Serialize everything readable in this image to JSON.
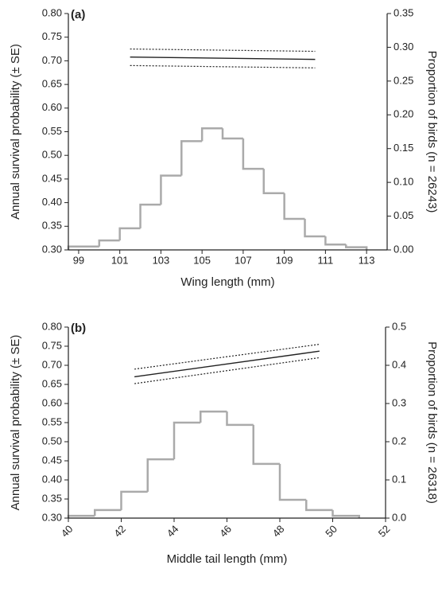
{
  "chart_data": [
    {
      "type": "line",
      "panel_label": "(a)",
      "xlabel": "Wing length (mm)",
      "ylabel": "Annual survival probability (± SE)",
      "y2label": "Proportion of birds (n = 26243)",
      "xlim": [
        98.5,
        114
      ],
      "xticks": [
        99,
        101,
        103,
        105,
        107,
        109,
        111,
        113
      ],
      "ylim": [
        0.3,
        0.8
      ],
      "yticks": [
        {
          "value": 0.3,
          "label": "0.30"
        },
        {
          "value": 0.35,
          "label": "0.35"
        },
        {
          "value": 0.4,
          "label": "0.40"
        },
        {
          "value": 0.45,
          "label": "0.45"
        },
        {
          "value": 0.5,
          "label": "0.50"
        },
        {
          "value": 0.55,
          "label": "0.55"
        },
        {
          "value": 0.6,
          "label": "0.60"
        },
        {
          "value": 0.65,
          "label": "0.65"
        },
        {
          "value": 0.7,
          "label": "0.70"
        },
        {
          "value": 0.75,
          "label": "0.75"
        },
        {
          "value": 0.8,
          "label": "0.80"
        }
      ],
      "y2lim": [
        0,
        0.35
      ],
      "y2ticks": [
        {
          "value": 0,
          "label": "0.00"
        },
        {
          "value": 0.05,
          "label": "0.05"
        },
        {
          "value": 0.1,
          "label": "0.10"
        },
        {
          "value": 0.15,
          "label": "0.15"
        },
        {
          "value": 0.2,
          "label": "0.20"
        },
        {
          "value": 0.25,
          "label": "0.25"
        },
        {
          "value": 0.3,
          "label": "0.30"
        },
        {
          "value": 0.35,
          "label": "0.35"
        }
      ],
      "x_tick_rotation": 0,
      "histogram": {
        "axis": "y2",
        "color": "#aaaaaa",
        "bins": [
          98.5,
          100,
          101,
          102,
          103,
          104,
          105,
          106,
          107,
          108,
          109,
          110,
          111,
          112,
          113
        ],
        "counts": [
          0.005,
          0.014,
          0.032,
          0.067,
          0.11,
          0.161,
          0.18,
          0.165,
          0.12,
          0.084,
          0.046,
          0.02,
          0.008,
          0.004
        ]
      },
      "series": [
        {
          "style": "solid",
          "color": "#222222",
          "x": [
            101.5,
            110.5
          ],
          "values": [
            0.708,
            0.703
          ]
        },
        {
          "style": "dotted",
          "color": "#222222",
          "x": [
            101.5,
            110.5
          ],
          "values": [
            0.725,
            0.72
          ]
        },
        {
          "style": "dotted",
          "color": "#222222",
          "x": [
            101.5,
            110.5
          ],
          "values": [
            0.69,
            0.685
          ]
        }
      ]
    },
    {
      "type": "line",
      "panel_label": "(b)",
      "xlabel": "Middle tail length (mm)",
      "ylabel": "Annual survival probability (± SE)",
      "y2label": "Proportion of birds (n = 26318)",
      "xlim": [
        40,
        52
      ],
      "xticks": [
        40,
        42,
        44,
        46,
        48,
        50,
        52
      ],
      "ylim": [
        0.3,
        0.8
      ],
      "yticks": [
        {
          "value": 0.3,
          "label": "0.30"
        },
        {
          "value": 0.35,
          "label": "0.35"
        },
        {
          "value": 0.4,
          "label": "0.40"
        },
        {
          "value": 0.45,
          "label": "0.45"
        },
        {
          "value": 0.5,
          "label": "0.50"
        },
        {
          "value": 0.55,
          "label": "0.55"
        },
        {
          "value": 0.6,
          "label": "0.60"
        },
        {
          "value": 0.65,
          "label": "0.65"
        },
        {
          "value": 0.7,
          "label": "0.70"
        },
        {
          "value": 0.75,
          "label": "0.75"
        },
        {
          "value": 0.8,
          "label": "0.80"
        }
      ],
      "y2lim": [
        0,
        0.5
      ],
      "y2ticks": [
        {
          "value": 0,
          "label": "0.0"
        },
        0.1,
        0.2,
        0.3,
        0.4,
        0.5
      ],
      "x_tick_rotation": -45,
      "histogram": {
        "axis": "y2",
        "color": "#aaaaaa",
        "bins": [
          40,
          41,
          42,
          43,
          44,
          45,
          46,
          47,
          48,
          49,
          50,
          51
        ],
        "counts": [
          0.006,
          0.021,
          0.069,
          0.154,
          0.25,
          0.279,
          0.244,
          0.142,
          0.048,
          0.021,
          0.006
        ]
      },
      "series": [
        {
          "style": "solid",
          "color": "#222222",
          "x": [
            42.5,
            49.5
          ],
          "values": [
            0.67,
            0.737
          ]
        },
        {
          "style": "dotted",
          "color": "#222222",
          "x": [
            42.5,
            49.5
          ],
          "values": [
            0.69,
            0.755
          ]
        },
        {
          "style": "dotted",
          "color": "#222222",
          "x": [
            42.5,
            49.5
          ],
          "values": [
            0.652,
            0.72
          ]
        }
      ]
    }
  ]
}
